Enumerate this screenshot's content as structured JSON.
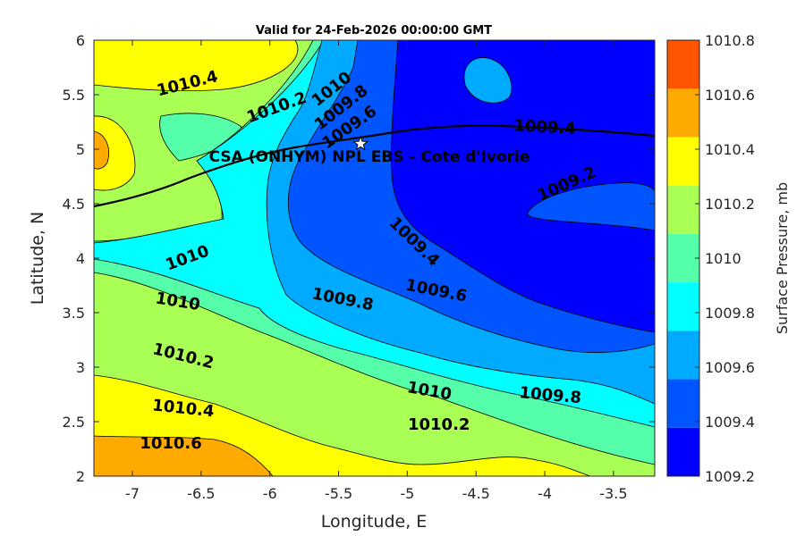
{
  "chart_data": {
    "type": "contour",
    "title": "Valid for 24-Feb-2026 00:00:00 GMT",
    "xlabel": "Longitude, E",
    "ylabel": "Latitude, N",
    "xlim": [
      -7.28,
      -3.2
    ],
    "ylim": [
      2,
      6
    ],
    "x_ticks": [
      -7,
      -6.5,
      -6,
      -5.5,
      -5,
      -4.5,
      -4,
      -3.5
    ],
    "y_ticks": [
      2,
      2.5,
      3,
      3.5,
      4,
      4.5,
      5,
      5.5,
      6
    ],
    "colorbar": {
      "label": "Surface Pressure, mb",
      "ticks": [
        1009.2,
        1009.4,
        1009.6,
        1009.8,
        1010,
        1010.2,
        1010.4,
        1010.6,
        1010.8
      ],
      "colors": [
        "#0000ff",
        "#0055ff",
        "#00aaff",
        "#00ffff",
        "#55ffaa",
        "#aaff55",
        "#ffff00",
        "#ffaa00",
        "#ff5500"
      ]
    },
    "contour_labels": [
      {
        "text": "1010.4",
        "lon": -6.6,
        "lat": 5.6,
        "angle": -14
      },
      {
        "text": "1010.2",
        "lon": -5.95,
        "lat": 5.38,
        "angle": -20
      },
      {
        "text": "1010",
        "lon": -5.55,
        "lat": 5.55,
        "angle": -38
      },
      {
        "text": "1009.8",
        "lon": -5.48,
        "lat": 5.38,
        "angle": -38
      },
      {
        "text": "1009.6",
        "lon": -5.42,
        "lat": 5.2,
        "angle": -35
      },
      {
        "text": "1009.4",
        "lon": -4.0,
        "lat": 5.2,
        "angle": 3
      },
      {
        "text": "1009.2",
        "lon": -3.84,
        "lat": 4.68,
        "angle": -24
      },
      {
        "text": "1009.4",
        "lon": -4.95,
        "lat": 4.15,
        "angle": 44
      },
      {
        "text": "1009.6",
        "lon": -4.79,
        "lat": 3.7,
        "angle": 11
      },
      {
        "text": "1009.8",
        "lon": -5.47,
        "lat": 3.62,
        "angle": 11
      },
      {
        "text": "1010",
        "lon": -6.6,
        "lat": 4.0,
        "angle": -20
      },
      {
        "text": "1010",
        "lon": -6.67,
        "lat": 3.6,
        "angle": 9
      },
      {
        "text": "1010.2",
        "lon": -6.63,
        "lat": 3.1,
        "angle": 14
      },
      {
        "text": "1010.4",
        "lon": -6.63,
        "lat": 2.62,
        "angle": 6
      },
      {
        "text": "1010.6",
        "lon": -6.72,
        "lat": 2.3,
        "angle": 0
      },
      {
        "text": "1010",
        "lon": -4.84,
        "lat": 2.78,
        "angle": 10
      },
      {
        "text": "1009.8",
        "lon": -3.96,
        "lat": 2.74,
        "angle": 5
      },
      {
        "text": "1010.2",
        "lon": -4.77,
        "lat": 2.47,
        "angle": 0
      }
    ],
    "site": {
      "label": "CSA (ONHYM) NPL EBS  - Cote d'Ivorie",
      "lon": -5.34,
      "lat": 5.05,
      "marker": "star"
    }
  }
}
